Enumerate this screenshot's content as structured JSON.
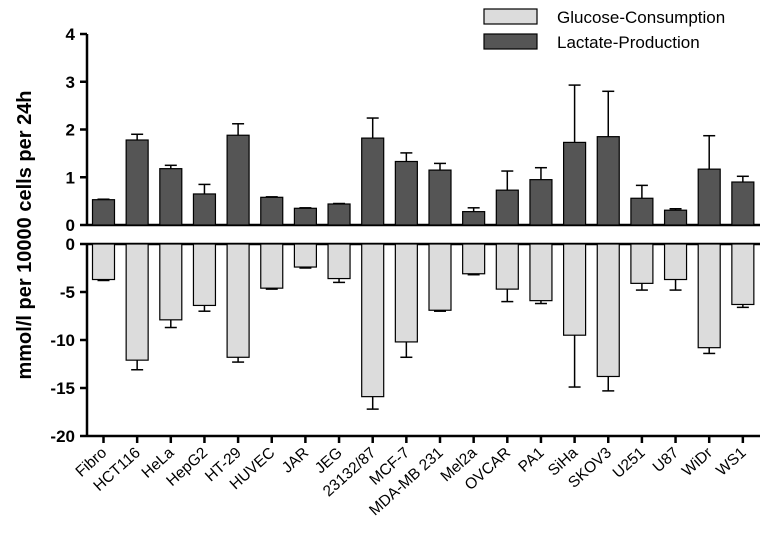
{
  "chart_data": {
    "type": "bar",
    "ylabel": "mmol/l per 10000 cells per 24h",
    "ylim_top": [
      0,
      4
    ],
    "ylim_bottom": [
      -20,
      0
    ],
    "yticks_top": [
      0,
      1,
      2,
      3,
      4
    ],
    "yticks_bottom": [
      0,
      -5,
      -10,
      -15,
      -20
    ],
    "legend_position": "top-right",
    "categories": [
      "Fibro",
      "HCT116",
      "HeLa",
      "HepG2",
      "HT-29",
      "HUVEC",
      "JAR",
      "JEG",
      "23132/87",
      "MCF-7",
      "MDA-MB 231",
      "Mel2a",
      "OVCAR",
      "PA1",
      "SiHa",
      "SKOV3",
      "U251",
      "U87",
      "WiDr",
      "WS1"
    ],
    "series": [
      {
        "name": "Glucose-Consumption",
        "color": "#dcdcdc",
        "values": [
          -3.7,
          -12.1,
          -7.9,
          -6.4,
          -11.8,
          -4.6,
          -2.4,
          -3.6,
          -15.9,
          -10.2,
          -6.9,
          -3.1,
          -4.7,
          -5.9,
          -9.5,
          -13.8,
          -4.1,
          -3.7,
          -10.8,
          -6.3
        ],
        "errors": [
          0.1,
          1.0,
          0.8,
          0.6,
          0.5,
          0.1,
          0.1,
          0.4,
          1.3,
          1.6,
          0.1,
          0.1,
          1.3,
          0.3,
          5.4,
          1.5,
          0.7,
          1.1,
          0.6,
          0.3
        ]
      },
      {
        "name": "Lactate-Production",
        "color": "#555555",
        "values": [
          0.53,
          1.78,
          1.18,
          0.65,
          1.88,
          0.58,
          0.35,
          0.44,
          1.82,
          1.33,
          1.15,
          0.28,
          0.73,
          0.95,
          1.73,
          1.85,
          0.56,
          0.31,
          1.17,
          0.9
        ],
        "errors": [
          0.01,
          0.12,
          0.07,
          0.2,
          0.24,
          0.01,
          0.01,
          0.01,
          0.42,
          0.18,
          0.14,
          0.08,
          0.4,
          0.25,
          1.2,
          0.95,
          0.27,
          0.03,
          0.7,
          0.12
        ]
      }
    ]
  }
}
